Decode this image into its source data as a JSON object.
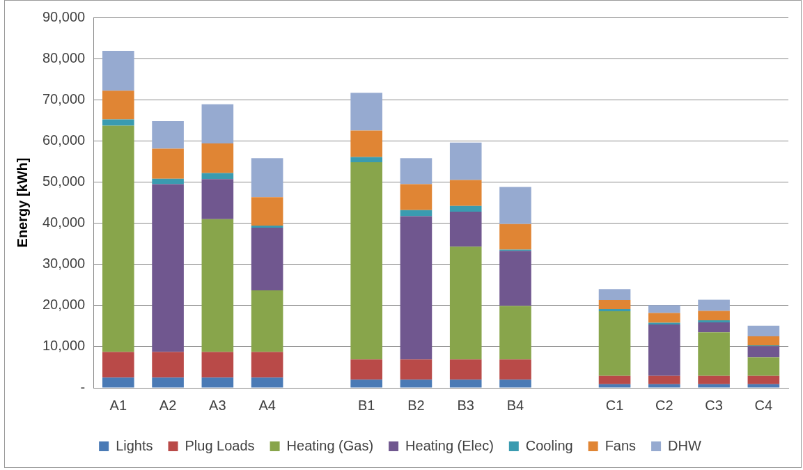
{
  "chart_data": {
    "type": "bar",
    "stacked": true,
    "ylabel": "Energy [kWh]",
    "categories": [
      "A1",
      "A2",
      "A3",
      "A4",
      null,
      "B1",
      "B2",
      "B3",
      "B4",
      null,
      "C1",
      "C2",
      "C3",
      "C4"
    ],
    "series": [
      {
        "name": "Lights",
        "color": "#4a7ab5",
        "values": [
          2500,
          2500,
          2500,
          2500,
          null,
          2000,
          2000,
          2000,
          2000,
          null,
          900,
          900,
          900,
          900
        ]
      },
      {
        "name": "Plug Loads",
        "color": "#b94a48",
        "values": [
          6200,
          6200,
          6200,
          6200,
          null,
          4900,
          4900,
          4900,
          4900,
          null,
          2000,
          2000,
          2000,
          2000
        ]
      },
      {
        "name": "Heating (Gas)",
        "color": "#88a54b",
        "values": [
          55000,
          0,
          32300,
          15000,
          null,
          47900,
          0,
          27400,
          13000,
          null,
          15700,
          0,
          10600,
          4500
        ]
      },
      {
        "name": "Heating (Elec)",
        "color": "#70578f",
        "values": [
          0,
          40800,
          9700,
          15200,
          null,
          0,
          34800,
          8500,
          13400,
          null,
          0,
          12500,
          2400,
          2700
        ]
      },
      {
        "name": "Cooling",
        "color": "#3a9bb0",
        "values": [
          1500,
          1300,
          1500,
          500,
          null,
          1300,
          1500,
          1400,
          300,
          null,
          500,
          400,
          500,
          200
        ]
      },
      {
        "name": "Fans",
        "color": "#e08534",
        "values": [
          7000,
          7300,
          7200,
          6900,
          null,
          6400,
          6300,
          6300,
          6200,
          null,
          2200,
          2400,
          2300,
          2200
        ]
      },
      {
        "name": "DHW",
        "color": "#96aad0",
        "values": [
          9700,
          6700,
          9500,
          9500,
          null,
          9200,
          6300,
          9100,
          9000,
          null,
          2700,
          1900,
          2700,
          2600
        ]
      }
    ],
    "ylim": [
      0,
      90000
    ],
    "yticks": [
      {
        "value": 0,
        "label": "-"
      },
      {
        "value": 10000,
        "label": "10,000"
      },
      {
        "value": 20000,
        "label": "20,000"
      },
      {
        "value": 30000,
        "label": "30,000"
      },
      {
        "value": 40000,
        "label": "40,000"
      },
      {
        "value": 50000,
        "label": "50,000"
      },
      {
        "value": 60000,
        "label": "60,000"
      },
      {
        "value": 70000,
        "label": "70,000"
      },
      {
        "value": 80000,
        "label": "80,000"
      },
      {
        "value": 90000,
        "label": "90,000"
      }
    ],
    "grid": "y",
    "legend": "bottom"
  }
}
